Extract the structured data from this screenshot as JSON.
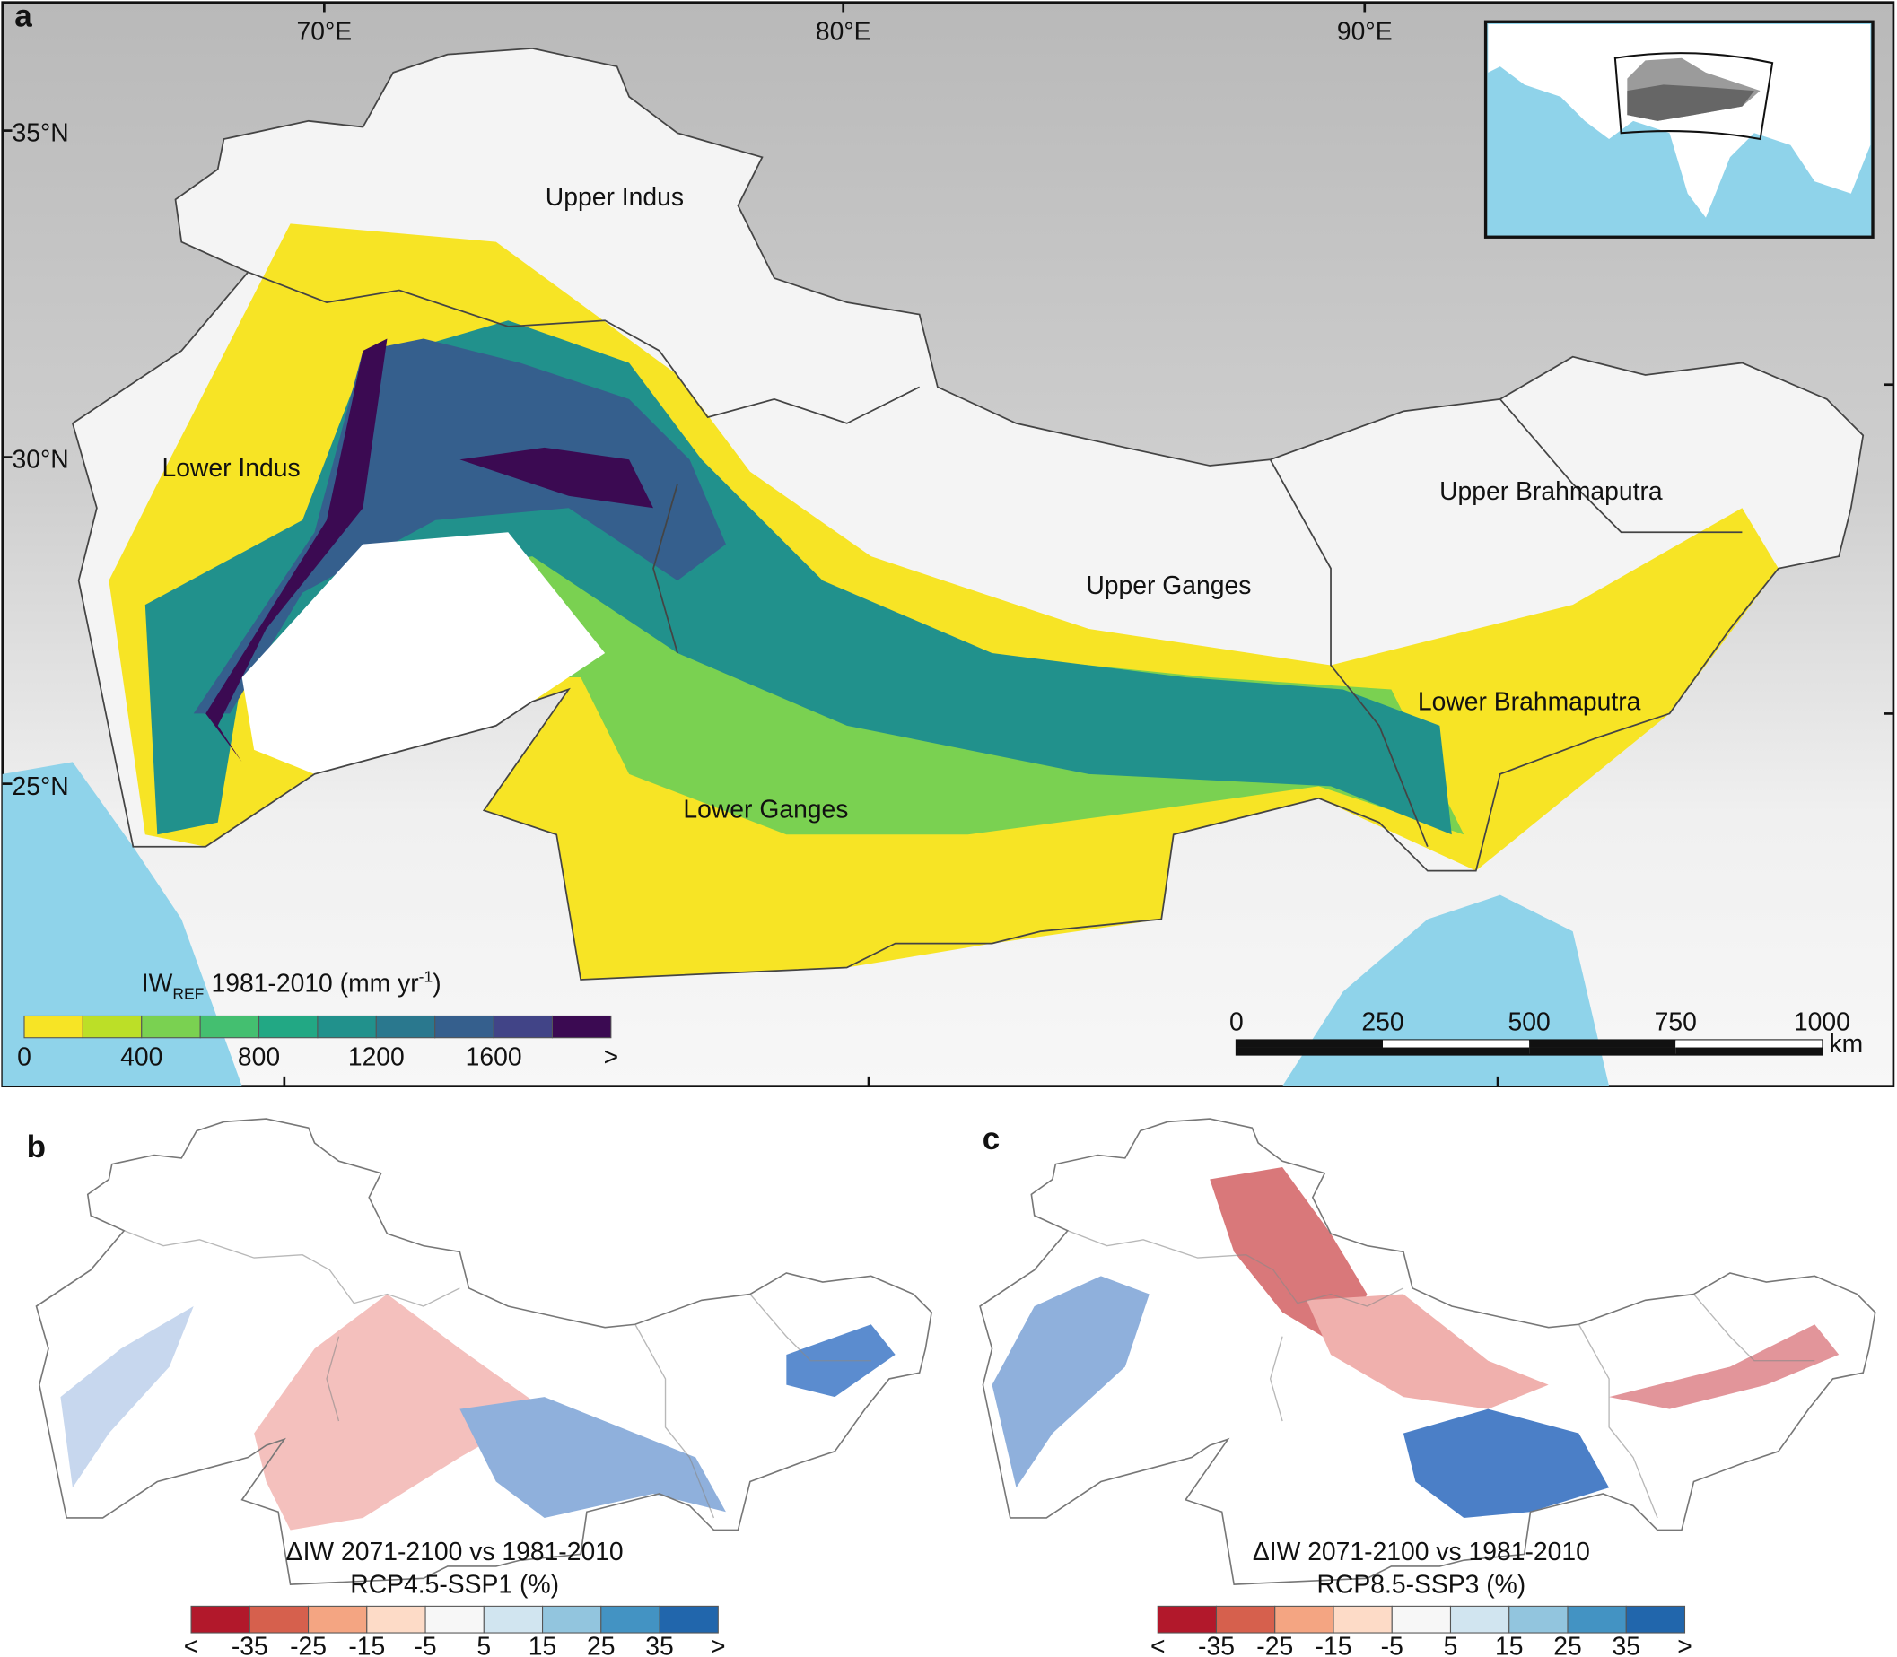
{
  "panels": {
    "a": {
      "label": "a",
      "lon_labels": [
        "70°E",
        "80°E",
        "90°E"
      ],
      "lat_labels": [
        "35°N",
        "30°N",
        "25°N"
      ],
      "regions": [
        "Upper Indus",
        "Lower Indus",
        "Upper Brahmaputra",
        "Upper Ganges",
        "Lower Brahmaputra",
        "Lower Ganges"
      ],
      "legend": {
        "title": {
          "main": "IW",
          "sub": "REF",
          "mid": "1981-2010 (mm yr",
          "sup": "-1",
          "end": ")"
        },
        "colors": [
          "#f7e425",
          "#bcdf27",
          "#7ad151",
          "#44bf70",
          "#22a884",
          "#21918c",
          "#2a788e",
          "#355f8d",
          "#414487",
          "#3b0a52"
        ],
        "labels": [
          "0",
          "400",
          "800",
          "1200",
          "1600",
          ">"
        ]
      },
      "scale_bar": {
        "labels": [
          "0",
          "250",
          "500",
          "750",
          "1000"
        ],
        "unit": "km"
      }
    },
    "b": {
      "label": "b",
      "legend": {
        "title": [
          "ΔIW 2071-2100 vs 1981-2010",
          "RCP4.5-SSP1 (%)"
        ],
        "colors": [
          "#b2182b",
          "#d6604d",
          "#f4a582",
          "#fddbc7",
          "#f7f7f7",
          "#d1e5f0",
          "#92c5de",
          "#4393c3",
          "#2166ac"
        ],
        "labels": [
          "<",
          "-35",
          "-25",
          "-15",
          "-5",
          "5",
          "15",
          "25",
          "35",
          ">"
        ]
      }
    },
    "c": {
      "label": "c",
      "legend": {
        "title": [
          "ΔIW 2071-2100 vs 1981-2010",
          "RCP8.5-SSP3 (%)"
        ],
        "colors": [
          "#b2182b",
          "#d6604d",
          "#f4a582",
          "#fddbc7",
          "#f7f7f7",
          "#d1e5f0",
          "#92c5de",
          "#4393c3",
          "#2166ac"
        ],
        "labels": [
          "<",
          "-35",
          "-25",
          "-15",
          "-5",
          "5",
          "15",
          "25",
          "35",
          ">"
        ]
      }
    }
  }
}
